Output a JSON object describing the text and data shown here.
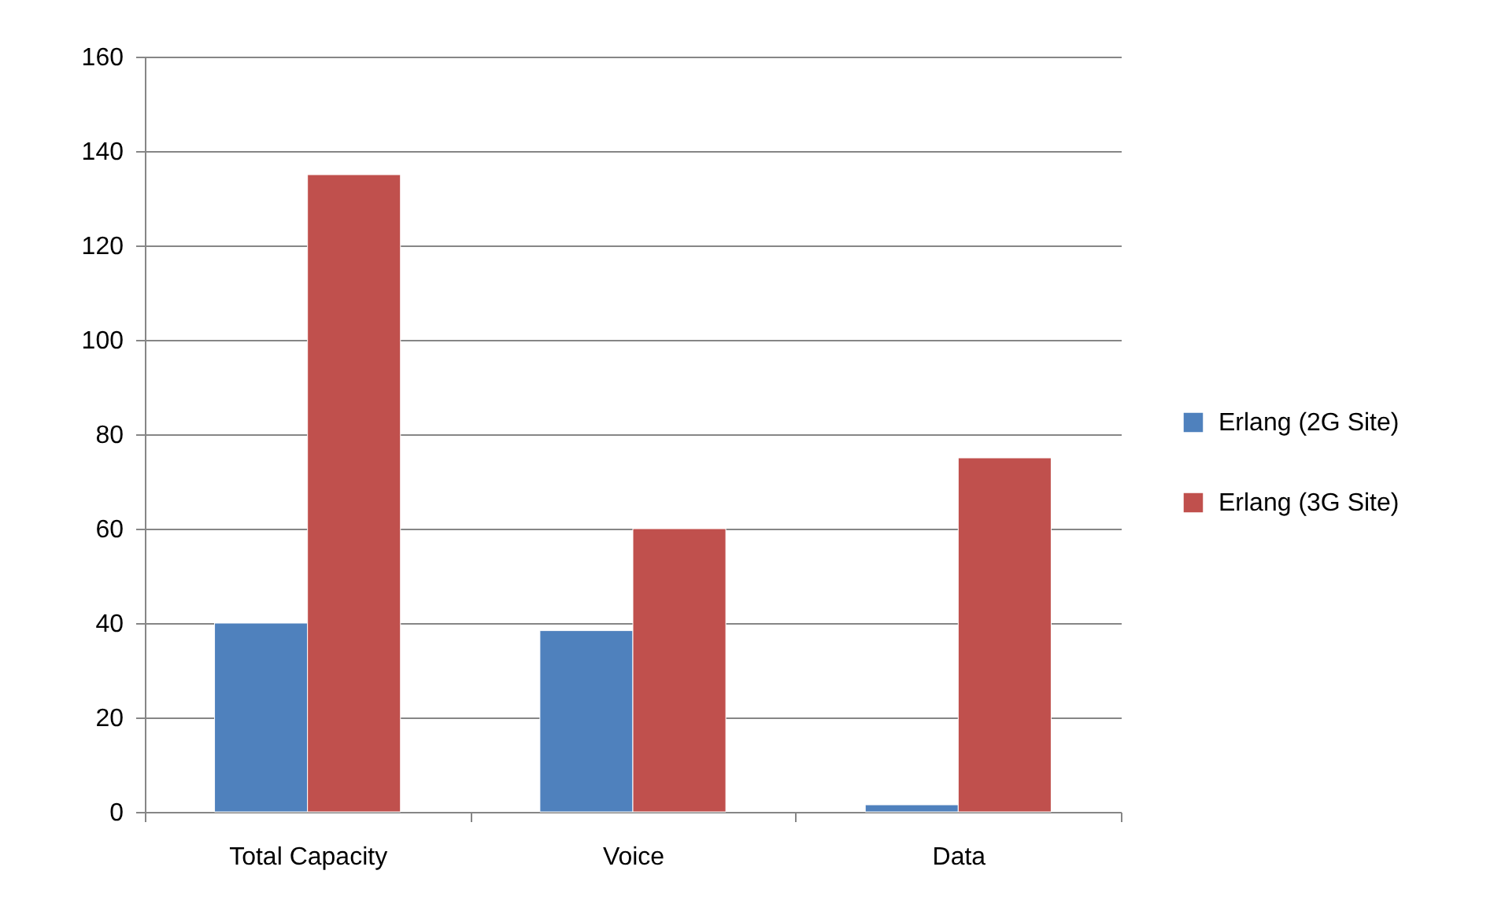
{
  "chart_data": {
    "type": "bar",
    "categories": [
      "Total Capacity",
      "Voice",
      "Data"
    ],
    "series": [
      {
        "name": "Erlang (2G Site)",
        "color": "#4f81bd",
        "values": [
          40,
          38.4,
          1.5
        ]
      },
      {
        "name": "Erlang (3G Site)",
        "color": "#c0504d",
        "values": [
          135,
          60,
          75
        ]
      }
    ],
    "ylim": [
      0,
      160
    ],
    "yticks": [
      0,
      20,
      40,
      60,
      80,
      100,
      120,
      140,
      160
    ],
    "grid": "y",
    "legend": "right"
  }
}
